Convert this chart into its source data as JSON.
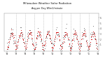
{
  "title": "Milwaukee Weather Solar Radiation",
  "subtitle": "Avg per Day W/m2/minute",
  "ylabel_values": [
    "1",
    "2",
    "3",
    "4",
    "5",
    "6"
  ],
  "yticks": [
    1,
    2,
    3,
    4,
    5,
    6
  ],
  "ylim": [
    -0.2,
    6.8
  ],
  "bg_color": "#ffffff",
  "dot_color_red": "#cc0000",
  "dot_color_black": "#333333",
  "grid_color": "#aaaaaa",
  "num_years": 10,
  "seed": 7
}
